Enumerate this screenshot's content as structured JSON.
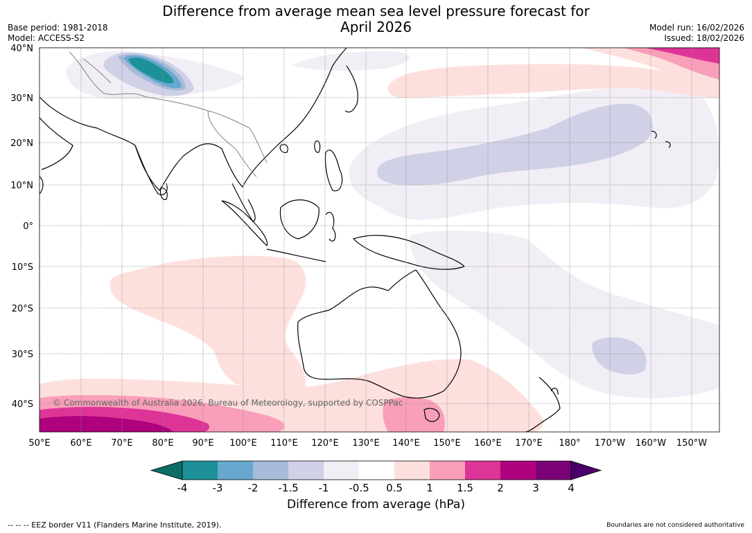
{
  "title": {
    "line1": "Difference from average mean sea level pressure forecast for",
    "line2": "April 2026"
  },
  "meta": {
    "base_period": "Base period: 1981-2018",
    "model": "Model: ACCESS-S2",
    "model_run": "Model run: 16/02/2026",
    "issued": "Issued: 18/02/2026"
  },
  "map": {
    "lat_labels": [
      "40°N",
      "30°N",
      "20°N",
      "10°N",
      "0°",
      "10°S",
      "20°S",
      "30°S",
      "40°S"
    ],
    "lon_labels": [
      "50°E",
      "60°E",
      "70°E",
      "80°E",
      "90°E",
      "100°E",
      "110°E",
      "120°E",
      "130°E",
      "140°E",
      "150°E",
      "160°E",
      "170°E",
      "180°",
      "170°W",
      "160°W",
      "150°W"
    ],
    "copyright": "© Commonwealth of Australia 2026, Bureau of Meteorology, supported by COSPPac"
  },
  "colorbar": {
    "title": "Difference from average (hPa)",
    "ticks": [
      "-4",
      "-3",
      "-2",
      "-1.5",
      "-1",
      "-0.5",
      "0.5",
      "1",
      "1.5",
      "2",
      "3",
      "4"
    ],
    "colors": [
      "#1d9098",
      "#66a8cf",
      "#a8bbd8",
      "#d0d1e6",
      "#f2eef5",
      "#ffffff",
      "#fde0dd",
      "#f99fb9",
      "#dd3497",
      "#ae017e",
      "#7a0177"
    ],
    "under_color": "#0b6d64",
    "over_color": "#49006a"
  },
  "footer": {
    "eez": "--  --  -- EEZ border V11 (Flanders Marine Institute, 2019).",
    "disclaimer": "Boundaries are not considered authoritative"
  }
}
